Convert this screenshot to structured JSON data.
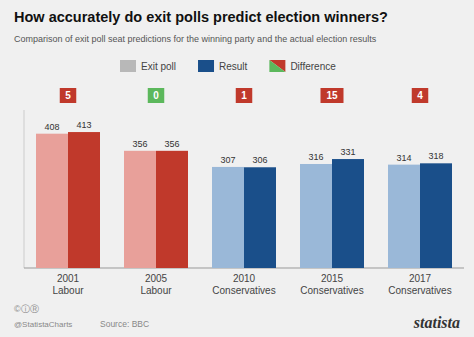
{
  "chart_data": {
    "type": "bar",
    "title": "How accurately do exit polls predict election winners?",
    "subtitle": "Comparison of exit poll seat predictions for the winning party and the actual election results",
    "categories": [
      [
        "2001",
        "Labour"
      ],
      [
        "2005",
        "Labour"
      ],
      [
        "2010",
        "Conservatives"
      ],
      [
        "2015",
        "Conservatives"
      ],
      [
        "2017",
        "Conservatives"
      ]
    ],
    "series": [
      {
        "name": "Exit poll",
        "color": "#b8b8b8",
        "colors": [
          "#e8a09a",
          "#e8a09a",
          "#9ab8d8",
          "#9ab8d8",
          "#9ab8d8"
        ],
        "values": [
          408,
          356,
          307,
          316,
          314
        ]
      },
      {
        "name": "Result",
        "color": "#1a4f8a",
        "colors": [
          "#c0392b",
          "#c0392b",
          "#1a4f8a",
          "#1a4f8a",
          "#1a4f8a"
        ],
        "values": [
          413,
          356,
          306,
          331,
          318
        ]
      },
      {
        "name": "Difference",
        "type": "badge",
        "colors": [
          "#c0392b",
          "#5cb85c",
          "#c0392b",
          "#c0392b",
          "#c0392b"
        ],
        "values": [
          5,
          0,
          1,
          15,
          4
        ]
      }
    ],
    "ylim": [
      0,
      480
    ],
    "data_labels": true,
    "tick_labels": false,
    "grid": false,
    "source": "Source: BBC",
    "annotations": [
      "©ⓘⓇ",
      "@StatistaCharts",
      "statista"
    ]
  }
}
